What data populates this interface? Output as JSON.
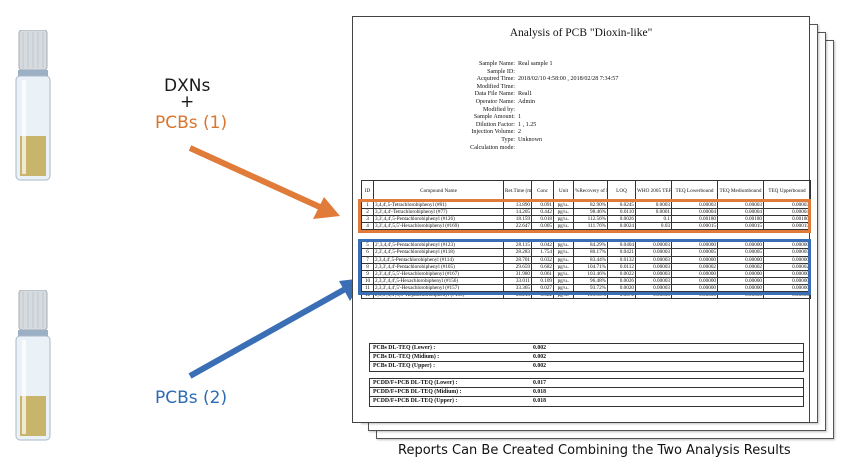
{
  "labels": {
    "dxns": "DXNs",
    "plus": "+",
    "pcbs1": "PCBs (1)",
    "pcbs2": "PCBs (2)"
  },
  "caption": "Reports Can Be Created Combining the Two Analysis Results",
  "colors": {
    "orange": "#e07b39",
    "blue": "#3a6fb5",
    "vial_liquid": "#c8b46a"
  },
  "report": {
    "title": "Analysis of PCB \"Dioxin-like\"",
    "info": [
      {
        "key": "Sample Name:",
        "value": "Real sample 1"
      },
      {
        "key": "Sample ID:",
        "value": ""
      },
      {
        "key": "Acquired Time:",
        "value": "2018/02/10 4:58:00 , 2018/02/28 7:34:57"
      },
      {
        "key": "Modified Time:",
        "value": ""
      },
      {
        "key": "Data File Name:",
        "value": "Real1"
      },
      {
        "key": "Operator Name:",
        "value": "Admin"
      },
      {
        "key": "Modified by:",
        "value": ""
      },
      {
        "key": "Sample Amount:",
        "value": "1"
      },
      {
        "key": "Dilution Factor:",
        "value": "1 , 1.25"
      },
      {
        "key": "Injection Volume:",
        "value": "2"
      },
      {
        "key": "Type:",
        "value": "Unknown"
      },
      {
        "key": "Calculation mode:",
        "value": ""
      }
    ],
    "columns": [
      "ID",
      "Compound Name",
      "Ret.Time (min)",
      "Conc",
      "Unit",
      "%Recovery of ISTD",
      "LOQ",
      "WHO 2005 TEF",
      "TEQ Lowerbound",
      "TEQ Mediumbound",
      "TEQ Upperbound"
    ],
    "rows_group1": [
      [
        "1",
        "3,4,4',5-Tetrachlorobiphenyl (#81)",
        "13.890",
        "0.091",
        "pg/u..",
        "82.90%",
        "0.0245",
        "0.0003",
        "0.00003",
        "0.00003",
        "0.00003"
      ],
      [
        "2",
        "3,3',4,4'-Tetrachlorobiphenyl (#77)",
        "14.205",
        "0.442",
        "pg/u..",
        "98.46%",
        "0.0110",
        "0.0001",
        "0.00004",
        "0.00004",
        "0.00004"
      ],
      [
        "3",
        "3,3',4,4',5-Pentachlorobiphenyl (#126)",
        "18.159",
        "0.018",
        "pg/u..",
        "112.56%",
        "0.0026",
        "0.1",
        "0.00180",
        "0.00180",
        "0.00180"
      ],
      [
        "4",
        "3,3',4,4',5,5'-Hexachlorobiphenyl (#169)",
        "22.647",
        "0.005",
        "pg/u..",
        "111.76%",
        "0.0024",
        "0.03",
        "0.00015",
        "0.00015",
        "0.00015"
      ]
    ],
    "rows_group2": [
      [
        "5",
        "2',3,4,4',5-Pentachlorobiphenyl (#123)",
        "28.115",
        "0.042",
        "pg/u..",
        "84.29%",
        "0.0404",
        "0.00003",
        "0.00000",
        "0.00000",
        "0.00000"
      ],
      [
        "6",
        "2,3',4,4',5-Pentachlorobiphenyl (#118)",
        "28.283",
        "1.754",
        "pg/u..",
        "80.17%",
        "0.0421",
        "0.00003",
        "0.00005",
        "0.00005",
        "0.00005"
      ],
      [
        "7",
        "2,3,4,4',5-Pentachlorobiphenyl (#114)",
        "28.701",
        "0.032",
        "pg/u..",
        "83.44%",
        "0.0132",
        "0.00003",
        "0.00000",
        "0.00000",
        "0.00000"
      ],
      [
        "8",
        "2,3,3',4,4'-Pentachlorobiphenyl (#105)",
        "29.659",
        "0.682",
        "pg/u..",
        "104.71%",
        "0.0112",
        "0.00003",
        "0.00002",
        "0.00002",
        "0.00002"
      ],
      [
        "9",
        "2,3',4,4',5,5'-Hexachlorobiphenyl (#167)",
        "31.980",
        "0.061",
        "pg/u..",
        "103.46%",
        "0.0022",
        "0.00003",
        "0.00000",
        "0.00000",
        "0.00000"
      ],
      [
        "10",
        "2,3,3',4,4',5-Hexachlorobiphenyl (#156)",
        "33.011",
        "0.109",
        "pg/u..",
        "96.48%",
        "0.0026",
        "0.00003",
        "0.00000",
        "0.00000",
        "0.00000"
      ],
      [
        "11",
        "2,3,3',4,4',5'-Hexachlorobiphenyl (#157)",
        "33.365",
        "0.027",
        "pg/u..",
        "93.72%",
        "0.0020",
        "0.00003",
        "0.00000",
        "0.00000",
        "0.00000"
      ],
      [
        "12",
        "2,3,3',4,4',5,5'-Heptachlorobiphenyl (#189)",
        "36.213",
        "0.022",
        "pg/u..",
        "101.90%",
        "0.0072",
        "0.00003",
        "0.00000",
        "0.00000",
        "0.00000"
      ]
    ],
    "teq1": [
      {
        "name": "PCBs DL-TEQ (Lower) :",
        "value": "0.002"
      },
      {
        "name": "PCBs DL-TEQ (Midium) :",
        "value": "0.002"
      },
      {
        "name": "PCBs DL-TEQ (Upper) :",
        "value": "0.002"
      }
    ],
    "teq2": [
      {
        "name": "PCDD/F+PCB DL-TEQ (Lower) :",
        "value": "0.017"
      },
      {
        "name": "PCDD/F+PCB DL-TEQ (Midium) :",
        "value": "0.018"
      },
      {
        "name": "PCDD/F+PCB DL-TEQ (Upper) :",
        "value": "0.018"
      }
    ]
  }
}
